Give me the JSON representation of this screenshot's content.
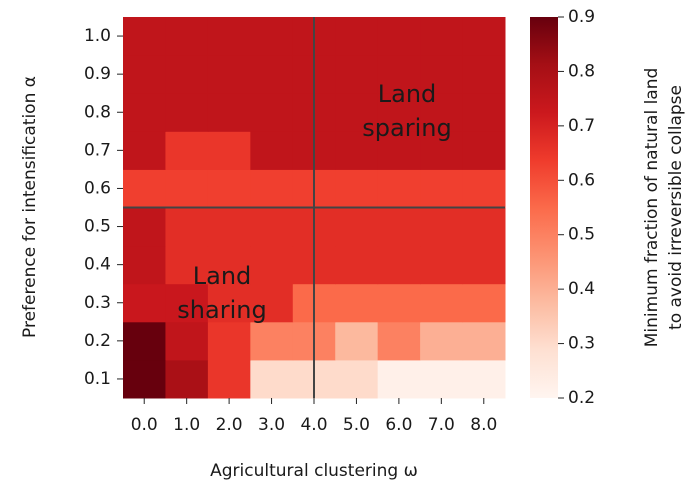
{
  "chart_data": {
    "type": "heatmap",
    "colormap": "Reds",
    "xlabel": "Agricultural clustering ω",
    "ylabel": "Preference for intensification α",
    "x": [
      "0.0",
      "1.0",
      "2.0",
      "3.0",
      "4.0",
      "5.0",
      "6.0",
      "7.0",
      "8.0"
    ],
    "y": [
      "0.1",
      "0.2",
      "0.3",
      "0.4",
      "0.5",
      "0.6",
      "0.7",
      "0.8",
      "0.9",
      "1.0"
    ],
    "z": [
      [
        0.9,
        0.8,
        0.65,
        0.3,
        0.3,
        0.3,
        0.22,
        0.22,
        0.22
      ],
      [
        0.9,
        0.75,
        0.65,
        0.5,
        0.5,
        0.38,
        0.5,
        0.4,
        0.4
      ],
      [
        0.73,
        0.73,
        0.67,
        0.67,
        0.55,
        0.55,
        0.55,
        0.55,
        0.55
      ],
      [
        0.75,
        0.67,
        0.67,
        0.67,
        0.67,
        0.67,
        0.67,
        0.67,
        0.67
      ],
      [
        0.75,
        0.67,
        0.67,
        0.67,
        0.67,
        0.67,
        0.67,
        0.67,
        0.67
      ],
      [
        0.63,
        0.63,
        0.63,
        0.63,
        0.63,
        0.63,
        0.63,
        0.63,
        0.63
      ],
      [
        0.75,
        0.65,
        0.65,
        0.75,
        0.75,
        0.75,
        0.75,
        0.75,
        0.75
      ],
      [
        0.75,
        0.75,
        0.75,
        0.75,
        0.75,
        0.75,
        0.75,
        0.75,
        0.75
      ],
      [
        0.75,
        0.75,
        0.75,
        0.75,
        0.75,
        0.75,
        0.75,
        0.75,
        0.75
      ],
      [
        0.75,
        0.75,
        0.75,
        0.75,
        0.75,
        0.75,
        0.75,
        0.75,
        0.75
      ]
    ],
    "vline": 4.0,
    "hline": 0.55,
    "annotations": [
      "Land\nsparing",
      "Land\nsharing"
    ],
    "zlim": [
      0.2,
      0.9
    ],
    "zticks": [
      0.2,
      0.3,
      0.4,
      0.5,
      0.6,
      0.7,
      0.8,
      0.9
    ],
    "colorbar_label": [
      "Minimum fraction of natural land",
      "to avoid irreversible collapse"
    ]
  }
}
